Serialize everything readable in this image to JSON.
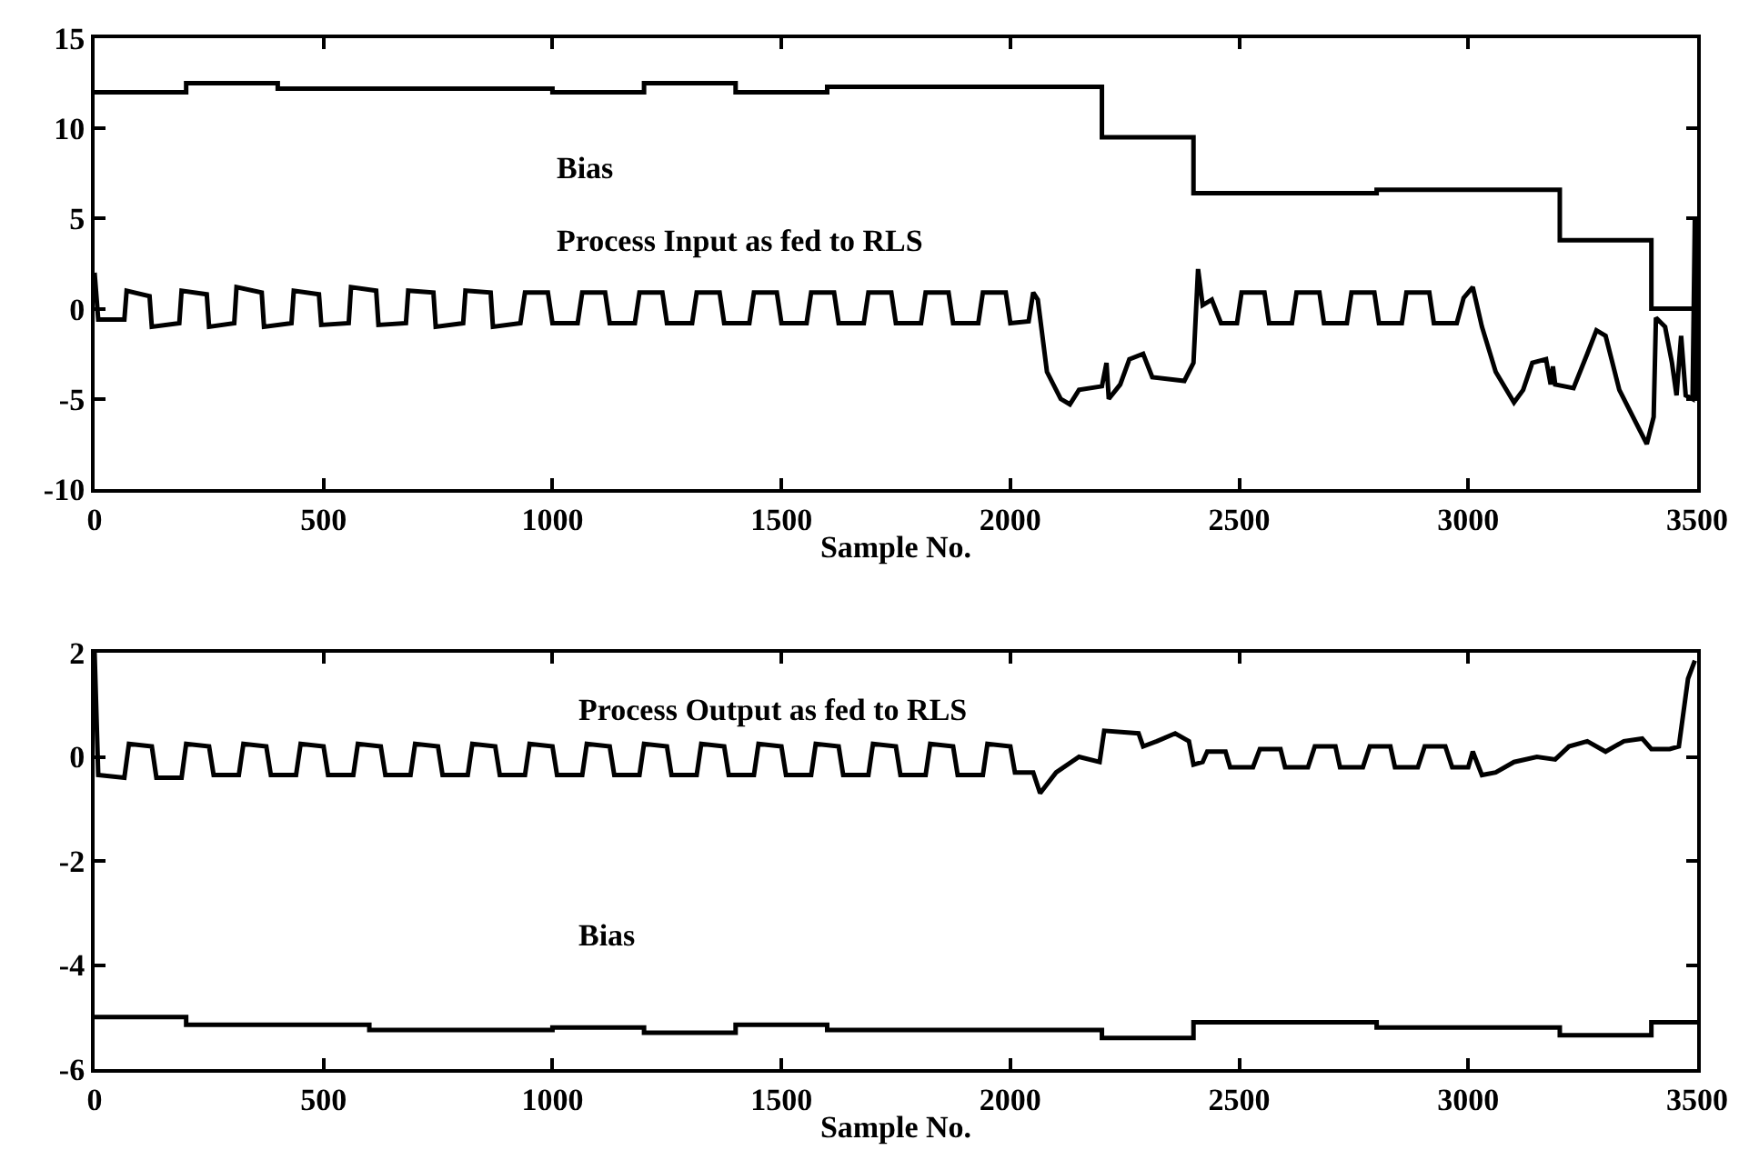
{
  "chart_data": [
    {
      "type": "line",
      "xlabel": "Sample No.",
      "xlim": [
        0,
        3500
      ],
      "xticks": [
        0,
        500,
        1000,
        1500,
        2000,
        2500,
        3000,
        3500
      ],
      "ylim": [
        -10,
        15
      ],
      "yticks": [
        -10,
        -5,
        0,
        5,
        10,
        15
      ],
      "grid": false,
      "annotations": [
        "Bias",
        "Process Input as fed to RLS"
      ],
      "series": [
        {
          "type": "step",
          "color": "#000000",
          "x": [
            0,
            200,
            400,
            1000,
            1200,
            1400,
            1600,
            2200,
            2400,
            2800,
            3200,
            3400,
            3500
          ],
          "values": [
            12,
            12.5,
            12.2,
            12,
            12.5,
            12,
            12.3,
            9.5,
            6.4,
            6.6,
            3.8,
            0,
            0
          ]
        },
        {
          "color": "#000000",
          "x": [
            0,
            8,
            65,
            70,
            120,
            125,
            185,
            190,
            245,
            250,
            305,
            310,
            365,
            370,
            430,
            435,
            490,
            495,
            555,
            560,
            615,
            620,
            680,
            685,
            740,
            745,
            805,
            810,
            865,
            870,
            930,
            940,
            990,
            1000,
            1055,
            1065,
            1115,
            1125,
            1180,
            1190,
            1240,
            1250,
            1305,
            1315,
            1365,
            1375,
            1430,
            1440,
            1490,
            1500,
            1555,
            1565,
            1615,
            1625,
            1680,
            1690,
            1740,
            1750,
            1805,
            1815,
            1865,
            1875,
            1930,
            1940,
            1990,
            2000,
            2040,
            2050,
            2060,
            2080,
            2110,
            2130,
            2150,
            2200,
            2210,
            2215,
            2240,
            2260,
            2290,
            2310,
            2380,
            2400,
            2410,
            2420,
            2440,
            2460,
            2495,
            2505,
            2555,
            2565,
            2615,
            2625,
            2675,
            2685,
            2735,
            2745,
            2795,
            2805,
            2855,
            2865,
            2915,
            2925,
            2975,
            2990,
            3010,
            3030,
            3060,
            3100,
            3120,
            3140,
            3170,
            3180,
            3185,
            3190,
            3230,
            3260,
            3280,
            3300,
            3330,
            3370,
            3390,
            3405,
            3410,
            3430,
            3445,
            3455,
            3465,
            3475,
            3490,
            3495,
            3500
          ],
          "values": [
            2,
            -0.6,
            -0.6,
            1,
            0.7,
            -1,
            -0.8,
            1,
            0.8,
            -1,
            -0.8,
            1.2,
            0.9,
            -1,
            -0.8,
            1,
            0.8,
            -0.9,
            -0.8,
            1.2,
            1,
            -0.9,
            -0.8,
            1,
            0.9,
            -1,
            -0.8,
            1,
            0.9,
            -1,
            -0.8,
            0.9,
            0.9,
            -0.8,
            -0.8,
            0.9,
            0.9,
            -0.8,
            -0.8,
            0.9,
            0.9,
            -0.8,
            -0.8,
            0.9,
            0.9,
            -0.8,
            -0.8,
            0.9,
            0.9,
            -0.8,
            -0.8,
            0.9,
            0.9,
            -0.8,
            -0.8,
            0.9,
            0.9,
            -0.8,
            -0.8,
            0.9,
            0.9,
            -0.8,
            -0.8,
            0.9,
            0.9,
            -0.8,
            -0.7,
            0.9,
            0.5,
            -3.5,
            -5,
            -5.3,
            -4.5,
            -4.3,
            -3,
            -5,
            -4.2,
            -2.8,
            -2.5,
            -3.8,
            -4,
            -3,
            2.2,
            0.2,
            0.5,
            -0.8,
            -0.8,
            0.9,
            0.9,
            -0.8,
            -0.8,
            0.9,
            0.9,
            -0.8,
            -0.8,
            0.9,
            0.9,
            -0.8,
            -0.8,
            0.9,
            0.9,
            -0.8,
            -0.8,
            0.6,
            1.2,
            -1,
            -3.5,
            -5.2,
            -4.5,
            -3,
            -2.8,
            -4.2,
            -3.2,
            -4.2,
            -4.4,
            -2.5,
            -1.2,
            -1.5,
            -4.5,
            -6.5,
            -7.5,
            -6,
            -0.5,
            -1,
            -3,
            -4.8,
            -1.5,
            -4.8,
            -5,
            5,
            -5
          ]
        }
      ]
    },
    {
      "type": "line",
      "xlabel": "Sample No.",
      "xlim": [
        0,
        3500
      ],
      "xticks": [
        0,
        500,
        1000,
        1500,
        2000,
        2500,
        3000,
        3500
      ],
      "ylim": [
        -6,
        2
      ],
      "yticks": [
        -6,
        -4,
        -2,
        0,
        2
      ],
      "grid": false,
      "annotations": [
        "Process Output as fed to RLS",
        "Bias"
      ],
      "series": [
        {
          "color": "#000000",
          "x": [
            0,
            8,
            65,
            75,
            125,
            135,
            190,
            200,
            250,
            260,
            315,
            325,
            375,
            385,
            440,
            450,
            500,
            510,
            565,
            575,
            625,
            635,
            690,
            700,
            750,
            760,
            815,
            825,
            875,
            885,
            940,
            950,
            1000,
            1010,
            1065,
            1075,
            1125,
            1135,
            1190,
            1200,
            1250,
            1260,
            1315,
            1325,
            1375,
            1385,
            1440,
            1450,
            1500,
            1510,
            1565,
            1575,
            1625,
            1635,
            1690,
            1700,
            1750,
            1760,
            1815,
            1825,
            1875,
            1885,
            1940,
            1950,
            2000,
            2010,
            2050,
            2065,
            2100,
            2150,
            2195,
            2205,
            2280,
            2290,
            2320,
            2360,
            2390,
            2400,
            2420,
            2430,
            2470,
            2480,
            2530,
            2545,
            2590,
            2600,
            2650,
            2665,
            2710,
            2720,
            2770,
            2785,
            2830,
            2840,
            2890,
            2905,
            2950,
            2965,
            3000,
            3010,
            3030,
            3060,
            3100,
            3150,
            3190,
            3220,
            3260,
            3300,
            3340,
            3380,
            3400,
            3440,
            3460,
            3480,
            3495
          ],
          "values": [
            2,
            -0.35,
            -0.4,
            0.25,
            0.2,
            -0.4,
            -0.4,
            0.25,
            0.2,
            -0.35,
            -0.35,
            0.25,
            0.2,
            -0.35,
            -0.35,
            0.25,
            0.2,
            -0.35,
            -0.35,
            0.25,
            0.2,
            -0.35,
            -0.35,
            0.25,
            0.2,
            -0.35,
            -0.35,
            0.25,
            0.2,
            -0.35,
            -0.35,
            0.25,
            0.2,
            -0.35,
            -0.35,
            0.25,
            0.2,
            -0.35,
            -0.35,
            0.25,
            0.2,
            -0.35,
            -0.35,
            0.25,
            0.2,
            -0.35,
            -0.35,
            0.25,
            0.2,
            -0.35,
            -0.35,
            0.25,
            0.2,
            -0.35,
            -0.35,
            0.25,
            0.2,
            -0.35,
            -0.35,
            0.25,
            0.2,
            -0.35,
            -0.35,
            0.25,
            0.2,
            -0.3,
            -0.3,
            -0.7,
            -0.3,
            0,
            -0.1,
            0.5,
            0.45,
            0.2,
            0.3,
            0.45,
            0.3,
            -0.15,
            -0.1,
            0.1,
            0.1,
            -0.2,
            -0.2,
            0.15,
            0.15,
            -0.2,
            -0.2,
            0.2,
            0.2,
            -0.2,
            -0.2,
            0.2,
            0.2,
            -0.2,
            -0.2,
            0.2,
            0.2,
            -0.2,
            -0.2,
            0.1,
            -0.35,
            -0.3,
            -0.1,
            0,
            -0.05,
            0.2,
            0.3,
            0.1,
            0.3,
            0.35,
            0.15,
            0.15,
            0.2,
            1.5,
            1.85
          ]
        },
        {
          "type": "step",
          "color": "#000000",
          "x": [
            0,
            200,
            600,
            1000,
            1200,
            1400,
            1600,
            2200,
            2400,
            2800,
            3200,
            3400,
            3500
          ],
          "values": [
            -5,
            -5.15,
            -5.25,
            -5.2,
            -5.3,
            -5.15,
            -5.25,
            -5.4,
            -5.1,
            -5.2,
            -5.35,
            -5.1,
            -5.1
          ]
        }
      ]
    }
  ]
}
